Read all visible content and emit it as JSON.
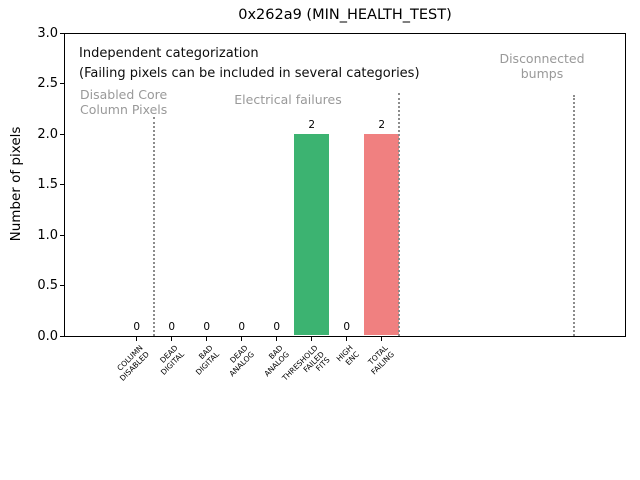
{
  "chart_data": {
    "type": "bar",
    "title": "0x262a9 (MIN_HEALTH_TEST)",
    "ylabel": "Number of pixels",
    "xlabel": "",
    "ylim": [
      0,
      3
    ],
    "ytick_labels": [
      "0.0",
      "0.5",
      "1.0",
      "1.5",
      "2.0",
      "2.5",
      "3.0"
    ],
    "categories": [
      "COLUMN\nDISABLED",
      "DEAD\nDIGITAL",
      "BAD\nDIGITAL",
      "DEAD\nANALOG",
      "BAD\nANALOG",
      "THRESHOLD\nFAILED\nFITS",
      "HIGH\nENC",
      "TOTAL\nFAILING"
    ],
    "values": [
      0,
      0,
      0,
      0,
      0,
      2,
      0,
      2
    ],
    "bar_value_labels": [
      "0",
      "0",
      "0",
      "0",
      "0",
      "2",
      "0",
      "2"
    ],
    "bar_colors": [
      null,
      null,
      null,
      null,
      null,
      "#3cb371",
      null,
      "#f08080"
    ],
    "grid": false,
    "legend_position": "none",
    "section_separators_category_positions": [
      0.5,
      7.5,
      12.5
    ]
  },
  "annotations": {
    "note_line1": "Independent categorization",
    "note_line2": "(Failing pixels can be included in several categories)",
    "sections": [
      {
        "label": "Disabled Core\nColumn Pixels"
      },
      {
        "label": "Electrical failures"
      },
      {
        "label": "Disconnected\nbumps"
      }
    ]
  },
  "colors": {
    "bar_green": "#3cb371",
    "bar_red": "#f08080",
    "section_text": "#999999",
    "separator_line": "#8c8c8c",
    "axis": "#000000",
    "background": "#ffffff"
  }
}
